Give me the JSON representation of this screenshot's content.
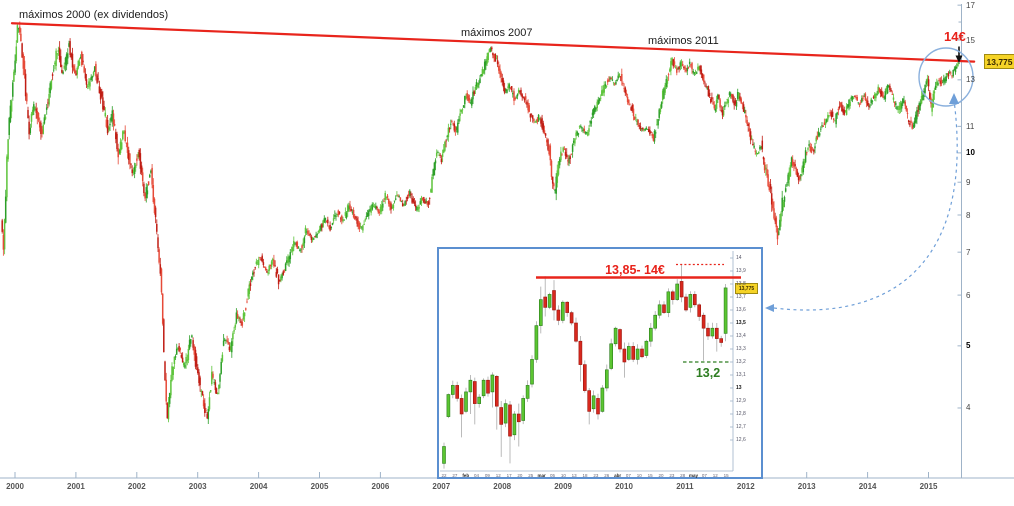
{
  "colors": {
    "up_dark": "#2c9e28",
    "up_light": "#5ec43c",
    "down_dark": "#c01d14",
    "down_light": "#e64a38",
    "inset_up_fill": "#5bc531",
    "inset_up_stroke": "#2a7d1a",
    "inset_down_fill": "#d8281e",
    "inset_down_stroke": "#9c140c",
    "wick_gray": "#aaaaaa",
    "trend_red": "#e8251c",
    "green_text": "#2e7d22",
    "blue_accent": "#6f9fd8",
    "circle_blue": "#8ab0dd",
    "axis_line": "#9fb3c8",
    "inset_border": "#5b8fd0",
    "tag_bg": "#f5d327",
    "arrow_black": "#111111"
  },
  "chart_data": [
    {
      "id": "main-chart",
      "type": "candlestick",
      "timeframe": "weekly",
      "scale": "log",
      "x_ticks": [
        "2000",
        "2001",
        "2002",
        "2003",
        "2004",
        "2005",
        "2006",
        "2007",
        "2008",
        "2009",
        "2010",
        "2011",
        "2012",
        "2013",
        "2014",
        "2015"
      ],
      "y_ticks": [
        "17",
        "15",
        "13",
        "11",
        "10",
        "9",
        "8",
        "7",
        "6",
        "5",
        "4"
      ],
      "y_bold_ticks": [
        "10",
        "5"
      ],
      "y_minor_ticks": [
        16,
        14,
        12
      ],
      "last_price_label": "13,775",
      "annotations": {
        "maximos_2000": "máximos 2000 (ex dividendos)",
        "maximos_2007": "máximos 2007",
        "maximos_2011": "máximos 2011",
        "price_target": "14€"
      },
      "trendline": {
        "from": {
          "year": 1999.95,
          "price": 15.93
        },
        "to": {
          "year": 2015.75,
          "price": 13.88
        }
      },
      "anchors": [
        [
          1999.79,
          8.0
        ],
        [
          1999.83,
          7.0
        ],
        [
          1999.9,
          10.5
        ],
        [
          2000.07,
          16.0
        ],
        [
          2000.16,
          13.6
        ],
        [
          2000.25,
          10.8
        ],
        [
          2000.34,
          12.0
        ],
        [
          2000.46,
          10.6
        ],
        [
          2000.6,
          12.8
        ],
        [
          2000.72,
          14.6
        ],
        [
          2000.8,
          13.2
        ],
        [
          2000.9,
          14.8
        ],
        [
          2001.0,
          13.2
        ],
        [
          2001.1,
          14.2
        ],
        [
          2001.2,
          12.6
        ],
        [
          2001.33,
          13.6
        ],
        [
          2001.45,
          12.0
        ],
        [
          2001.55,
          10.8
        ],
        [
          2001.62,
          11.5
        ],
        [
          2001.72,
          9.9
        ],
        [
          2001.8,
          10.8
        ],
        [
          2001.95,
          9.3
        ],
        [
          2002.05,
          10.1
        ],
        [
          2002.15,
          8.5
        ],
        [
          2002.25,
          9.4
        ],
        [
          2002.35,
          7.4
        ],
        [
          2002.42,
          6.3
        ],
        [
          2002.47,
          4.6
        ],
        [
          2002.52,
          3.9
        ],
        [
          2002.6,
          4.6
        ],
        [
          2002.7,
          5.0
        ],
        [
          2002.8,
          4.6
        ],
        [
          2002.92,
          5.2
        ],
        [
          2003.0,
          4.6
        ],
        [
          2003.1,
          4.1
        ],
        [
          2003.17,
          3.85
        ],
        [
          2003.25,
          4.5
        ],
        [
          2003.35,
          4.2
        ],
        [
          2003.45,
          5.2
        ],
        [
          2003.55,
          4.9
        ],
        [
          2003.65,
          5.6
        ],
        [
          2003.75,
          5.4
        ],
        [
          2003.85,
          6.1
        ],
        [
          2003.95,
          6.6
        ],
        [
          2004.05,
          6.9
        ],
        [
          2004.15,
          6.5
        ],
        [
          2004.25,
          6.8
        ],
        [
          2004.35,
          6.3
        ],
        [
          2004.45,
          6.6
        ],
        [
          2004.6,
          7.3
        ],
        [
          2004.7,
          7.0
        ],
        [
          2004.8,
          7.6
        ],
        [
          2004.9,
          7.3
        ],
        [
          2005.0,
          7.5
        ],
        [
          2005.1,
          7.9
        ],
        [
          2005.2,
          7.6
        ],
        [
          2005.3,
          8.1
        ],
        [
          2005.4,
          7.8
        ],
        [
          2005.5,
          8.3
        ],
        [
          2005.6,
          7.9
        ],
        [
          2005.7,
          7.6
        ],
        [
          2005.8,
          8.0
        ],
        [
          2005.9,
          8.3
        ],
        [
          2006.0,
          8.1
        ],
        [
          2006.1,
          8.6
        ],
        [
          2006.2,
          8.2
        ],
        [
          2006.3,
          8.6
        ],
        [
          2006.4,
          8.3
        ],
        [
          2006.5,
          8.7
        ],
        [
          2006.6,
          8.1
        ],
        [
          2006.7,
          8.5
        ],
        [
          2006.8,
          8.3
        ],
        [
          2006.88,
          9.2
        ],
        [
          2006.95,
          10.1
        ],
        [
          2007.02,
          9.7
        ],
        [
          2007.1,
          10.6
        ],
        [
          2007.18,
          11.2
        ],
        [
          2007.26,
          10.8
        ],
        [
          2007.34,
          11.6
        ],
        [
          2007.42,
          12.3
        ],
        [
          2007.5,
          11.9
        ],
        [
          2007.58,
          12.7
        ],
        [
          2007.66,
          13.1
        ],
        [
          2007.74,
          13.8
        ],
        [
          2007.82,
          14.5
        ],
        [
          2007.9,
          14.1
        ],
        [
          2007.98,
          13.2
        ],
        [
          2008.06,
          12.4
        ],
        [
          2008.14,
          12.8
        ],
        [
          2008.22,
          12.1
        ],
        [
          2008.3,
          12.5
        ],
        [
          2008.38,
          12.2
        ],
        [
          2008.46,
          11.6
        ],
        [
          2008.55,
          11.1
        ],
        [
          2008.63,
          11.4
        ],
        [
          2008.71,
          10.8
        ],
        [
          2008.79,
          10.1
        ],
        [
          2008.84,
          9.0
        ],
        [
          2008.88,
          8.6
        ],
        [
          2008.93,
          9.5
        ],
        [
          2008.98,
          9.9
        ],
        [
          2009.04,
          10.2
        ],
        [
          2009.1,
          9.6
        ],
        [
          2009.2,
          10.5
        ],
        [
          2009.3,
          11.0
        ],
        [
          2009.4,
          10.7
        ],
        [
          2009.5,
          11.5
        ],
        [
          2009.6,
          12.0
        ],
        [
          2009.7,
          12.7
        ],
        [
          2009.78,
          13.1
        ],
        [
          2009.86,
          12.8
        ],
        [
          2009.95,
          13.3
        ],
        [
          2010.02,
          12.5
        ],
        [
          2010.1,
          12.0
        ],
        [
          2010.2,
          11.3
        ],
        [
          2010.3,
          10.9
        ],
        [
          2010.4,
          10.9
        ],
        [
          2010.5,
          10.5
        ],
        [
          2010.56,
          11.2
        ],
        [
          2010.62,
          11.9
        ],
        [
          2010.68,
          12.6
        ],
        [
          2010.74,
          13.2
        ],
        [
          2010.8,
          14.0
        ],
        [
          2010.88,
          13.4
        ],
        [
          2010.96,
          13.8
        ],
        [
          2011.04,
          13.5
        ],
        [
          2011.1,
          13.8
        ],
        [
          2011.16,
          13.3
        ],
        [
          2011.25,
          13.6
        ],
        [
          2011.33,
          13.0
        ],
        [
          2011.42,
          12.3
        ],
        [
          2011.5,
          11.7
        ],
        [
          2011.56,
          12.2
        ],
        [
          2011.63,
          11.5
        ],
        [
          2011.7,
          12.0
        ],
        [
          2011.77,
          12.5
        ],
        [
          2011.84,
          11.9
        ],
        [
          2011.9,
          12.4
        ],
        [
          2011.97,
          11.8
        ],
        [
          2012.04,
          11.2
        ],
        [
          2012.12,
          10.4
        ],
        [
          2012.2,
          9.9
        ],
        [
          2012.27,
          10.3
        ],
        [
          2012.35,
          9.3
        ],
        [
          2012.42,
          8.7
        ],
        [
          2012.5,
          7.8
        ],
        [
          2012.55,
          7.35
        ],
        [
          2012.62,
          8.4
        ],
        [
          2012.7,
          9.0
        ],
        [
          2012.77,
          9.8
        ],
        [
          2012.84,
          9.4
        ],
        [
          2012.9,
          9.1
        ],
        [
          2012.97,
          9.7
        ],
        [
          2013.04,
          10.3
        ],
        [
          2013.12,
          10.0
        ],
        [
          2013.2,
          10.7
        ],
        [
          2013.3,
          11.1
        ],
        [
          2013.4,
          11.6
        ],
        [
          2013.48,
          11.2
        ],
        [
          2013.56,
          11.9
        ],
        [
          2013.64,
          11.5
        ],
        [
          2013.72,
          12.0
        ],
        [
          2013.8,
          12.3
        ],
        [
          2013.88,
          11.9
        ],
        [
          2013.96,
          12.3
        ],
        [
          2014.04,
          11.8
        ],
        [
          2014.12,
          12.2
        ],
        [
          2014.2,
          12.6
        ],
        [
          2014.28,
          12.2
        ],
        [
          2014.36,
          12.7
        ],
        [
          2014.44,
          12.1
        ],
        [
          2014.52,
          11.6
        ],
        [
          2014.6,
          12.1
        ],
        [
          2014.68,
          11.3
        ],
        [
          2014.76,
          10.9
        ],
        [
          2014.84,
          11.6
        ],
        [
          2014.92,
          12.3
        ],
        [
          2015.0,
          13.0
        ],
        [
          2015.06,
          11.7
        ],
        [
          2015.12,
          12.5
        ],
        [
          2015.18,
          13.1
        ],
        [
          2015.24,
          12.8
        ],
        [
          2015.3,
          13.1
        ],
        [
          2015.36,
          13.35
        ],
        [
          2015.4,
          13.15
        ],
        [
          2015.44,
          13.45
        ],
        [
          2015.48,
          13.65
        ],
        [
          2015.52,
          13.775
        ]
      ]
    },
    {
      "id": "inset-chart",
      "type": "candlestick",
      "timeframe": "daily",
      "scale": "linear",
      "ylim": [
        12.45,
        14.05
      ],
      "x_ticks": [
        "22",
        "27",
        "feb",
        "04",
        "09",
        "12",
        "17",
        "20",
        "25",
        "mar",
        "05",
        "10",
        "13",
        "18",
        "23",
        "26",
        "abr",
        "07",
        "10",
        "15",
        "20",
        "23",
        "28",
        "may",
        "07",
        "12",
        "15"
      ],
      "y_ticks": [
        "14",
        "13,9",
        "13,8",
        "13,7",
        "13,6",
        "13,5",
        "13,4",
        "13,3",
        "13,2",
        "13,1",
        "13",
        "12,9",
        "12,8",
        "12,7",
        "12,6"
      ],
      "y_bold_ticks": [
        "13,5",
        "13"
      ],
      "last_price_label": "13,775",
      "resistance": {
        "label": "13,85- 14€",
        "level": 13.85
      },
      "high_marker": {
        "level": 13.95,
        "style": "dotted"
      },
      "support": {
        "label": "13,2",
        "level": 13.2
      },
      "candles_ohlc": [
        [
          12.42,
          12.55,
          12.58,
          12.38
        ],
        [
          12.78,
          12.95
        ],
        [
          12.95,
          13.02
        ],
        [
          13.02,
          12.92
        ],
        [
          12.92,
          12.8,
          12.95,
          12.62
        ],
        [
          12.82,
          12.97
        ],
        [
          12.97,
          13.06,
          13.1,
          12.8
        ],
        [
          13.05,
          12.88,
          13.08,
          12.72
        ],
        [
          12.88,
          12.93
        ],
        [
          12.94,
          13.06
        ],
        [
          13.06,
          12.96
        ],
        [
          12.97,
          13.1,
          13.12,
          12.85
        ],
        [
          13.09,
          12.86,
          13.1,
          12.68
        ],
        [
          12.85,
          12.72,
          12.9,
          12.47
        ],
        [
          12.73,
          12.88
        ],
        [
          12.87,
          12.63,
          12.9,
          12.42
        ],
        [
          12.64,
          12.8
        ],
        [
          12.8,
          12.74,
          12.88,
          12.55
        ],
        [
          12.75,
          12.92
        ],
        [
          12.92,
          13.02
        ],
        [
          13.03,
          13.22
        ],
        [
          13.22,
          13.48
        ],
        [
          13.48,
          13.68,
          13.78,
          13.42
        ],
        [
          13.7,
          13.62,
          13.86,
          13.55
        ],
        [
          13.62,
          13.72
        ],
        [
          13.75,
          13.6,
          13.83,
          13.52
        ],
        [
          13.6,
          13.52
        ],
        [
          13.52,
          13.66
        ],
        [
          13.66,
          13.58
        ],
        [
          13.58,
          13.5
        ],
        [
          13.5,
          13.36
        ],
        [
          13.36,
          13.18,
          13.4,
          13.05
        ],
        [
          13.18,
          12.98
        ],
        [
          12.98,
          12.82,
          13.0,
          12.72
        ],
        [
          12.84,
          12.94
        ],
        [
          12.92,
          12.8
        ],
        [
          12.82,
          13.0
        ],
        [
          13.0,
          13.14
        ],
        [
          13.15,
          13.34
        ],
        [
          13.34,
          13.46
        ],
        [
          13.45,
          13.3
        ],
        [
          13.3,
          13.2,
          13.35,
          13.08
        ],
        [
          13.22,
          13.32
        ],
        [
          13.32,
          13.22
        ],
        [
          13.22,
          13.3
        ],
        [
          13.3,
          13.24
        ],
        [
          13.25,
          13.36
        ],
        [
          13.36,
          13.46
        ],
        [
          13.46,
          13.56
        ],
        [
          13.56,
          13.64
        ],
        [
          13.64,
          13.58
        ],
        [
          13.58,
          13.74
        ],
        [
          13.74,
          13.68
        ],
        [
          13.68,
          13.8
        ],
        [
          13.82,
          13.7,
          13.95,
          13.66
        ],
        [
          13.7,
          13.6
        ],
        [
          13.62,
          13.72
        ],
        [
          13.72,
          13.64
        ],
        [
          13.64,
          13.55
        ],
        [
          13.56,
          13.46,
          13.58,
          13.21
        ],
        [
          13.46,
          13.4
        ],
        [
          13.4,
          13.46
        ],
        [
          13.46,
          13.38,
          13.5,
          13.28
        ],
        [
          13.38,
          13.35
        ],
        [
          13.42,
          13.77,
          13.8,
          13.36
        ]
      ]
    }
  ]
}
